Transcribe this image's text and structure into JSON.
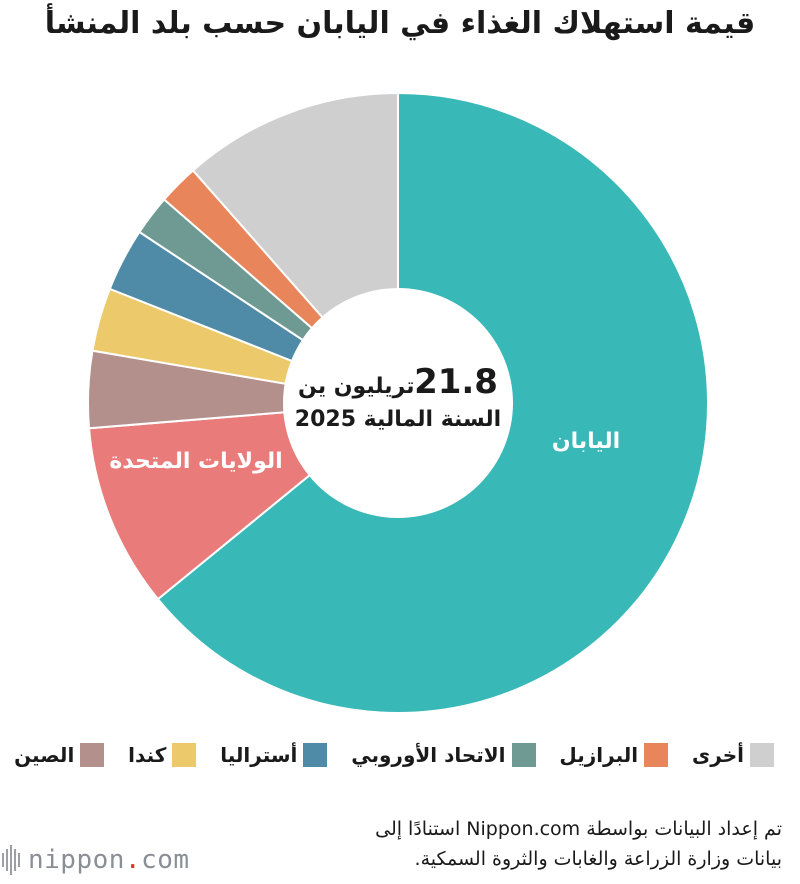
{
  "title": "قيمة استهلاك الغذاء في اليابان حسب بلد المنشأ",
  "center": {
    "value": "21.8",
    "unit": "تريليون ين",
    "period": "السنة المالية 2025"
  },
  "chart_data": {
    "type": "pie",
    "donut": true,
    "total": 21.8,
    "slices": [
      {
        "label": "اليابان",
        "value": 64.1,
        "color": "#38b8b7",
        "show_label": true
      },
      {
        "label": "الولايات المتحدة",
        "value": 9.6,
        "color": "#e97b7b",
        "show_label": true
      },
      {
        "label": "الصين",
        "value": 4.0,
        "color": "#b3908c",
        "show_label": false
      },
      {
        "label": "كندا",
        "value": 3.3,
        "color": "#ecc96a",
        "show_label": false
      },
      {
        "label": "أستراليا",
        "value": 3.3,
        "color": "#4f8aa6",
        "show_label": false
      },
      {
        "label": "الاتحاد الأوروبي",
        "value": 2.1,
        "color": "#6f9a93",
        "show_label": false
      },
      {
        "label": "البرازيل",
        "value": 2.1,
        "color": "#e9855a",
        "show_label": false
      },
      {
        "label": "أخرى",
        "value": 11.5,
        "color": "#cfcfcf",
        "show_label": false
      }
    ]
  },
  "legend": [
    {
      "label": "الصين",
      "color": "#b3908c"
    },
    {
      "label": "كندا",
      "color": "#ecc96a"
    },
    {
      "label": "أستراليا",
      "color": "#4f8aa6"
    },
    {
      "label": "الاتحاد الأوروبي",
      "color": "#6f9a93"
    },
    {
      "label": "البرازيل",
      "color": "#e9855a"
    },
    {
      "label": "أخرى",
      "color": "#cfcfcf"
    }
  ],
  "footer": {
    "line1": "تم إعداد البيانات بواسطة Nippon.com استنادًا إلى",
    "line2": "بيانات وزارة الزراعة والغابات والثروة السمكية."
  },
  "logo": {
    "name": "nippon",
    "dot": ".",
    "suffix": "com"
  }
}
